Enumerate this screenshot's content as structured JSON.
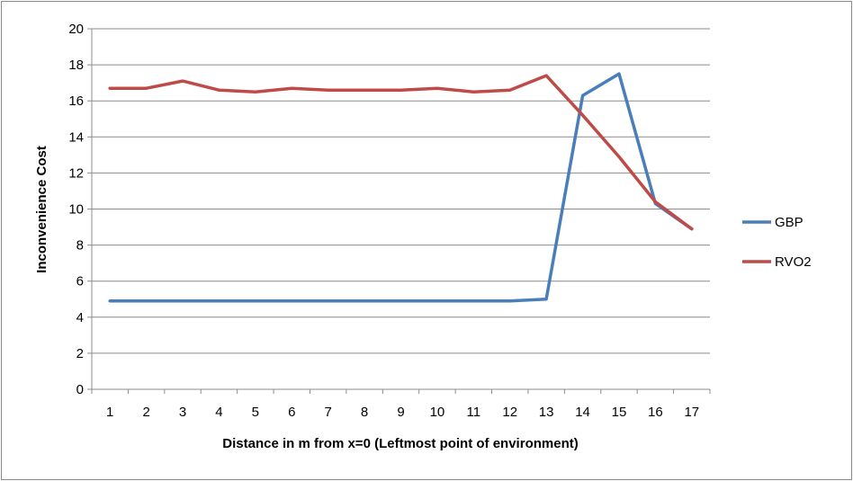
{
  "chart_data": {
    "type": "line",
    "title": "",
    "xlabel": "Distance in m from x=0 (Leftmost point of environment)",
    "ylabel": "Inconvenience Cost",
    "categories": [
      "1",
      "2",
      "3",
      "4",
      "5",
      "6",
      "7",
      "8",
      "9",
      "10",
      "11",
      "12",
      "13",
      "14",
      "15",
      "16",
      "17"
    ],
    "ylim": [
      0,
      20
    ],
    "yticks": [
      0,
      2,
      4,
      6,
      8,
      10,
      12,
      14,
      16,
      18,
      20
    ],
    "grid": "horizontal",
    "legend_position": "right",
    "series": [
      {
        "name": "GBP",
        "color": "#4A7EBB",
        "values": [
          4.9,
          4.9,
          4.9,
          4.9,
          4.9,
          4.9,
          4.9,
          4.9,
          4.9,
          4.9,
          4.9,
          4.9,
          5.0,
          16.3,
          17.5,
          10.3,
          8.9
        ]
      },
      {
        "name": "RVO2",
        "color": "#BE4B48",
        "values": [
          16.7,
          16.7,
          17.1,
          16.6,
          16.5,
          16.7,
          16.6,
          16.6,
          16.6,
          16.7,
          16.5,
          16.6,
          17.4,
          15.2,
          12.9,
          10.4,
          8.9
        ]
      }
    ]
  }
}
